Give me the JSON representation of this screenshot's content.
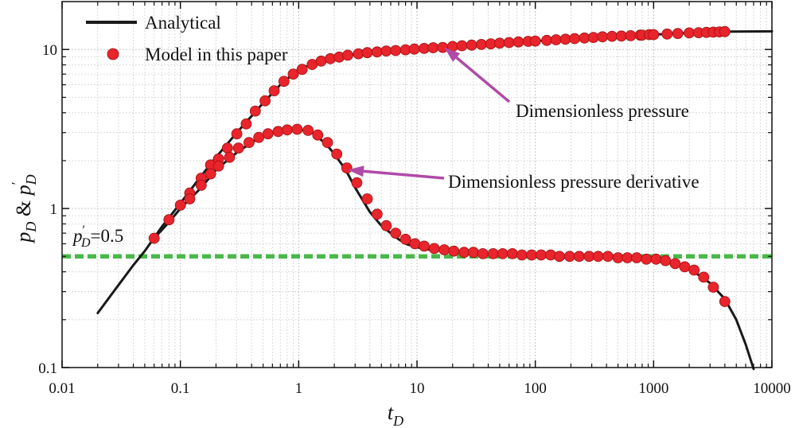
{
  "chart_data": {
    "type": "line",
    "x_scale": "log",
    "y_scale": "log",
    "xlim": [
      0.01,
      10000
    ],
    "ylim": [
      0.1,
      20
    ],
    "grid": true,
    "legend_placement": "top-left",
    "x_ticks": [
      {
        "value": 0.01,
        "label": "0.01"
      },
      {
        "value": 0.1,
        "label": "0.1"
      },
      {
        "value": 1,
        "label": "1"
      },
      {
        "value": 10,
        "label": "10"
      },
      {
        "value": 100,
        "label": "100"
      },
      {
        "value": 1000,
        "label": "1000"
      },
      {
        "value": 10000,
        "label": "10000"
      }
    ],
    "y_ticks": [
      {
        "value": 0.1,
        "label": "0.1"
      },
      {
        "value": 1,
        "label": "1"
      },
      {
        "value": 10,
        "label": "10"
      }
    ],
    "xlabel": {
      "main": "t",
      "sub": "D"
    },
    "ylabel": {
      "p1": "p",
      "s1": "D",
      "amp": " & ",
      "p2": "p",
      "prime": "′",
      "s2": "D"
    },
    "legend": {
      "analytical": "Analytical",
      "model": "Model in this paper"
    },
    "colors": {
      "analytical": "#1a1a1a",
      "model": "#e8242c",
      "reference": "#4ab84a",
      "arrow": "#b04aa8"
    },
    "reference_line": {
      "y": 0.5,
      "label": {
        "p": "p",
        "prime": "′",
        "sub": "D",
        "rest": "=0.5"
      }
    },
    "annotations": [
      {
        "id": "pressure",
        "text": "Dimensionless pressure",
        "points_to": {
          "x": 17,
          "y": 10.3
        }
      },
      {
        "id": "derivative",
        "text": "Dimensionless pressure derivative",
        "points_to": {
          "x": 2.6,
          "y": 1.75
        }
      }
    ],
    "series": [
      {
        "id": "pressure-analytical",
        "style": "line",
        "x": [
          0.02,
          0.03,
          0.04,
          0.05,
          0.07,
          0.1,
          0.15,
          0.2,
          0.3,
          0.5,
          0.7,
          1,
          1.5,
          2,
          3,
          5,
          7,
          10,
          20,
          50,
          100,
          200,
          500,
          1000,
          2000,
          4000,
          10000
        ],
        "y": [
          0.22,
          0.33,
          0.44,
          0.54,
          0.77,
          1.08,
          1.6,
          2.1,
          3.0,
          4.6,
          6.0,
          7.5,
          8.4,
          8.9,
          9.3,
          9.7,
          9.9,
          10.1,
          10.45,
          10.95,
          11.3,
          11.65,
          12.1,
          12.4,
          12.7,
          12.95,
          13.0
        ]
      },
      {
        "id": "derivative-analytical",
        "style": "line",
        "x": [
          0.06,
          0.08,
          0.1,
          0.15,
          0.2,
          0.3,
          0.4,
          0.5,
          0.6,
          0.8,
          1,
          1.3,
          1.7,
          2,
          2.5,
          3,
          4,
          5,
          6,
          7,
          8,
          10,
          13,
          17,
          20,
          30,
          50,
          100,
          200,
          500,
          1000,
          1500,
          2000,
          3000,
          4000,
          5000,
          6000,
          7000
        ],
        "y": [
          0.65,
          0.82,
          1.0,
          1.35,
          1.75,
          2.25,
          2.6,
          2.85,
          3.0,
          3.15,
          3.15,
          3.0,
          2.55,
          2.2,
          1.75,
          1.35,
          0.95,
          0.78,
          0.7,
          0.64,
          0.6,
          0.57,
          0.55,
          0.54,
          0.53,
          0.52,
          0.52,
          0.51,
          0.5,
          0.49,
          0.47,
          0.45,
          0.42,
          0.34,
          0.27,
          0.2,
          0.14,
          0.098
        ]
      },
      {
        "id": "pressure-model",
        "style": "markers",
        "x": [
          0.06,
          0.08,
          0.1,
          0.12,
          0.15,
          0.18,
          0.21,
          0.25,
          0.3,
          0.36,
          0.43,
          0.52,
          0.62,
          0.75,
          0.9,
          1.07,
          1.3,
          1.55,
          1.85,
          2.2,
          2.6,
          3.2,
          3.8,
          4.6,
          5.5,
          6.6,
          8,
          9.5,
          11.5,
          13.7,
          16.5,
          20,
          24,
          29,
          35,
          42,
          50,
          60,
          72,
          87,
          100,
          125,
          150,
          180,
          215,
          260,
          310,
          370,
          445,
          535,
          640,
          770,
          800,
          920,
          1000,
          1300,
          1600,
          2000,
          2400,
          2800,
          3200,
          3600,
          4000
        ],
        "y": [
          0.65,
          0.85,
          1.05,
          1.25,
          1.55,
          1.88,
          2.05,
          2.4,
          2.95,
          3.4,
          4.1,
          4.75,
          5.5,
          6.3,
          7.0,
          7.5,
          8.05,
          8.45,
          8.75,
          8.95,
          9.2,
          9.4,
          9.55,
          9.65,
          9.78,
          9.85,
          9.95,
          10.05,
          10.15,
          10.25,
          10.3,
          10.45,
          10.55,
          10.65,
          10.75,
          10.85,
          10.95,
          11.05,
          11.15,
          11.25,
          11.3,
          11.4,
          11.5,
          11.6,
          11.7,
          11.8,
          11.9,
          12.0,
          12.1,
          12.15,
          12.2,
          12.3,
          12.32,
          12.4,
          12.4,
          12.5,
          12.6,
          12.7,
          12.75,
          12.8,
          12.85,
          12.9,
          12.95
        ]
      },
      {
        "id": "derivative-model",
        "style": "markers",
        "x": [
          0.12,
          0.15,
          0.18,
          0.21,
          0.26,
          0.31,
          0.38,
          0.46,
          0.55,
          0.67,
          0.8,
          0.97,
          1.2,
          1.45,
          1.75,
          2.1,
          2.55,
          3.1,
          3.8,
          4.6,
          5.5,
          6.6,
          8,
          9.6,
          11.5,
          14,
          17,
          20.5,
          25,
          30,
          36,
          44,
          53,
          64,
          77,
          93,
          112,
          135,
          160,
          195,
          235,
          285,
          340,
          410,
          500,
          600,
          720,
          870,
          1050,
          1260,
          1520,
          1830,
          2200,
          2650,
          3200,
          4000
        ],
        "y": [
          1.15,
          1.4,
          1.65,
          1.85,
          2.1,
          2.4,
          2.6,
          2.8,
          2.95,
          3.05,
          3.12,
          3.15,
          3.1,
          2.9,
          2.6,
          2.2,
          1.8,
          1.45,
          1.15,
          0.92,
          0.78,
          0.7,
          0.64,
          0.6,
          0.58,
          0.56,
          0.55,
          0.54,
          0.53,
          0.53,
          0.52,
          0.52,
          0.52,
          0.52,
          0.51,
          0.51,
          0.51,
          0.51,
          0.5,
          0.5,
          0.5,
          0.5,
          0.5,
          0.5,
          0.49,
          0.49,
          0.49,
          0.48,
          0.48,
          0.47,
          0.45,
          0.43,
          0.41,
          0.37,
          0.32,
          0.26
        ]
      }
    ]
  }
}
